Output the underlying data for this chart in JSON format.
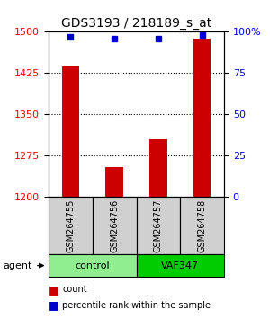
{
  "title": "GDS3193 / 218189_s_at",
  "samples": [
    "GSM264755",
    "GSM264756",
    "GSM264757",
    "GSM264758"
  ],
  "counts": [
    1437,
    1255,
    1305,
    1487
  ],
  "percentiles": [
    97,
    96,
    96,
    98
  ],
  "ylim_left": [
    1200,
    1500
  ],
  "ylim_right": [
    0,
    100
  ],
  "yticks_left": [
    1200,
    1275,
    1350,
    1425,
    1500
  ],
  "yticks_right": [
    0,
    25,
    50,
    75,
    100
  ],
  "ytick_labels_right": [
    "0",
    "25",
    "50",
    "75",
    "100%"
  ],
  "groups": [
    {
      "label": "control",
      "indices": [
        0,
        1
      ],
      "color": "#90EE90"
    },
    {
      "label": "VAF347",
      "indices": [
        2,
        3
      ],
      "color": "#00CC00"
    }
  ],
  "bar_color": "#CC0000",
  "dot_color": "#0000CC",
  "bar_width": 0.4,
  "legend_count_color": "#CC0000",
  "legend_pct_color": "#0000CC",
  "agent_label": "agent",
  "background_color": "#ffffff",
  "plot_bg_color": "#ffffff",
  "sample_box_color": "#d0d0d0"
}
